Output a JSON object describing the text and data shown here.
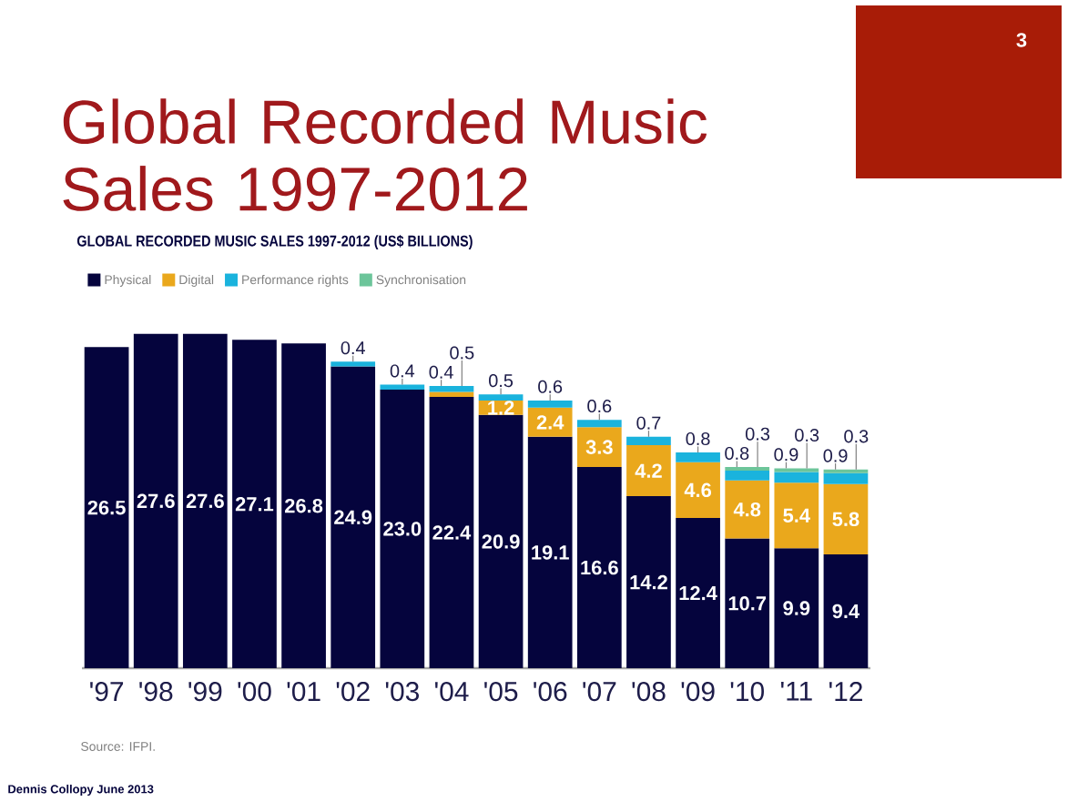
{
  "chart_data": {
    "type": "bar",
    "stacked": true,
    "title": "Global Recorded Music Sales 1997-2012",
    "subtitle": "GLOBAL RECORDED MUSIC SALES 1997-2012 (US$ BILLIONS)",
    "categories": [
      "'97",
      "'98",
      "'99",
      "'00",
      "'01",
      "'02",
      "'03",
      "'04",
      "'05",
      "'06",
      "'07",
      "'08",
      "'09",
      "'10",
      "'11",
      "'12"
    ],
    "series": [
      {
        "name": "Physical",
        "color": "#05043d",
        "values": [
          26.5,
          27.6,
          27.6,
          27.1,
          26.8,
          24.9,
          23.0,
          22.4,
          20.9,
          19.1,
          16.6,
          14.2,
          12.4,
          10.7,
          9.9,
          9.4
        ],
        "value_labels": [
          "26.5",
          "27.6",
          "27.6",
          "27.1",
          "26.8",
          "24.9",
          "23.0",
          "22.4",
          "20.9",
          "19.1",
          "16.6",
          "14.2",
          "12.4",
          "10.7",
          "9.9",
          "9.4"
        ]
      },
      {
        "name": "Digital",
        "color": "#eaa81c",
        "values": [
          null,
          null,
          null,
          null,
          null,
          null,
          null,
          0.4,
          1.2,
          2.4,
          3.3,
          4.2,
          4.6,
          4.8,
          5.4,
          5.8
        ],
        "value_labels": [
          null,
          null,
          null,
          null,
          null,
          null,
          null,
          "0.4",
          "1.2",
          "2.4",
          "3.3",
          "4.2",
          "4.6",
          "4.8",
          "5.4",
          "5.8"
        ]
      },
      {
        "name": "Performance rights",
        "color": "#1ab3dd",
        "values": [
          null,
          null,
          null,
          null,
          null,
          0.4,
          0.4,
          0.5,
          0.5,
          0.6,
          0.6,
          0.7,
          0.8,
          0.8,
          0.9,
          0.9
        ],
        "value_labels": [
          null,
          null,
          null,
          null,
          null,
          "0.4",
          "0.4",
          "0.5",
          "0.5",
          "0.6",
          "0.6",
          "0.7",
          "0.8",
          "0.8",
          "0.9",
          "0.9"
        ]
      },
      {
        "name": "Synchronisation",
        "color": "#6cc59a",
        "values": [
          null,
          null,
          null,
          null,
          null,
          null,
          null,
          null,
          null,
          null,
          null,
          null,
          null,
          0.3,
          0.3,
          0.3
        ],
        "value_labels": [
          null,
          null,
          null,
          null,
          null,
          null,
          null,
          null,
          null,
          null,
          null,
          null,
          null,
          "0.3",
          "0.3",
          "0.3"
        ]
      }
    ],
    "legend": "top left",
    "annotations": [
      "Source: IFPI.",
      "Dennis Collopy June 2013",
      "3"
    ]
  }
}
